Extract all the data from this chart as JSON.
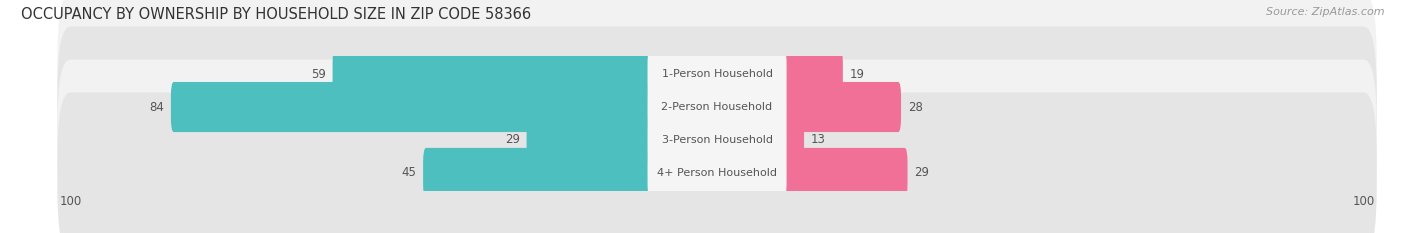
{
  "title": "OCCUPANCY BY OWNERSHIP BY HOUSEHOLD SIZE IN ZIP CODE 58366",
  "source": "Source: ZipAtlas.com",
  "categories": [
    "1-Person Household",
    "2-Person Household",
    "3-Person Household",
    "4+ Person Household"
  ],
  "owner_values": [
    59,
    84,
    29,
    45
  ],
  "renter_values": [
    19,
    28,
    13,
    29
  ],
  "owner_color": "#4dbfbf",
  "renter_color": "#f07098",
  "axis_max": 100,
  "bar_height": 0.62,
  "title_fontsize": 10.5,
  "source_fontsize": 8,
  "label_fontsize": 8,
  "value_fontsize": 8.5,
  "legend_fontsize": 8.5,
  "background_color": "#ffffff",
  "row_bg_light": "#f2f2f2",
  "row_bg_dark": "#e5e5e5",
  "center_label_bg": "#f5f5f5",
  "text_color": "#555555",
  "title_color": "#333333",
  "source_color": "#999999"
}
